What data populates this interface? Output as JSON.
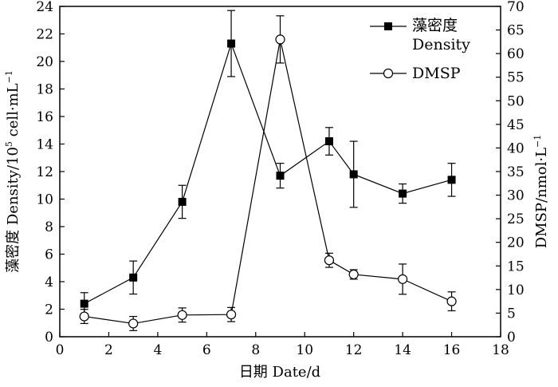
{
  "chart_data": {
    "type": "line",
    "x": [
      1,
      3,
      5,
      7,
      9,
      11,
      12,
      14,
      16
    ],
    "xlabel": "日期 Date/d",
    "xlim": [
      0,
      18
    ],
    "xticks": [
      0,
      2,
      4,
      6,
      8,
      10,
      12,
      14,
      16,
      18
    ],
    "y_left": {
      "label_main": "藻密度 Density/10",
      "label_exp": "5",
      "label_unit": " cell·mL",
      "label_unit_exp": "−1",
      "lim": [
        0,
        24
      ],
      "ticks": [
        0,
        2,
        4,
        6,
        8,
        10,
        12,
        14,
        16,
        18,
        20,
        22,
        24
      ]
    },
    "y_right": {
      "label_main": "DMSP/nmol·L",
      "label_exp": "−1",
      "lim": [
        0,
        70
      ],
      "ticks": [
        0,
        5,
        10,
        15,
        20,
        25,
        30,
        35,
        40,
        45,
        50,
        55,
        60,
        65,
        70
      ]
    },
    "series": [
      {
        "name": "藻密度",
        "name_en": "Density",
        "axis": "left",
        "marker": "filled-square",
        "values": [
          2.4,
          4.3,
          9.8,
          21.3,
          11.7,
          14.2,
          11.8,
          10.4,
          11.4
        ],
        "err": [
          0.8,
          1.2,
          1.2,
          2.4,
          0.9,
          1.0,
          2.4,
          0.7,
          1.2
        ]
      },
      {
        "name": "DMSP",
        "axis": "right",
        "marker": "open-circle",
        "values": [
          4.3,
          2.8,
          4.6,
          4.7,
          63.0,
          16.2,
          13.2,
          12.2,
          7.5
        ],
        "err": [
          1.5,
          1.5,
          1.5,
          1.5,
          5.0,
          1.5,
          1.0,
          3.2,
          2.0
        ]
      }
    ],
    "legend_position": "top-right",
    "grid": false
  }
}
